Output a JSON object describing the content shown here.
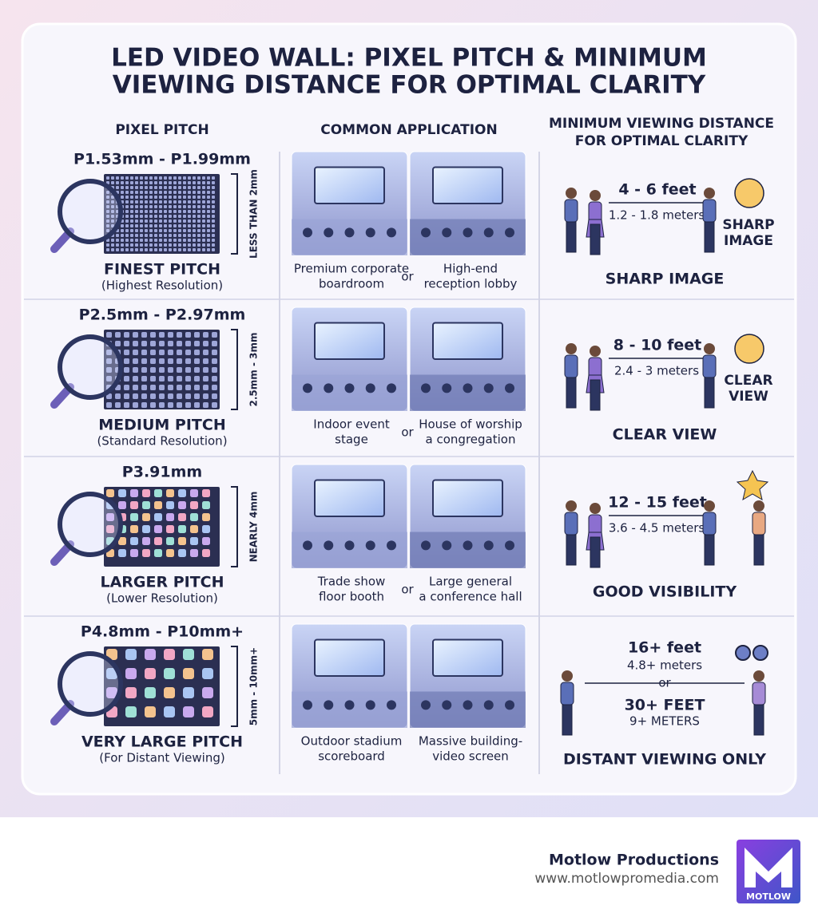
{
  "header": {
    "title_lines": [
      "LED VIDEO WALL: PIXEL PITCH & MINIMUM",
      "VIEWING DISTANCE FOR OPTIMAL CLARITY"
    ]
  },
  "columns": {
    "pixel_pitch": "PIXEL PITCH",
    "application": "COMMON APPLICATION",
    "distance_lines": [
      "MINIMUM VIEWING DISTANCE",
      "FOR OPTIMAL CLARITY"
    ]
  },
  "rows": [
    {
      "pitch_range": "P1.53mm - P1.99mm",
      "size_note": "LESS THAN 2mm",
      "pitch_name": "FINEST PITCH",
      "resolution": "(Highest Resolution)",
      "app_left": [
        "Premium corporate",
        "boardroom"
      ],
      "app_or": "or",
      "app_right": [
        "High-end",
        "reception lobby"
      ],
      "feet": "4 - 6 feet",
      "meters": "1.2 - 1.8 meters",
      "badge": [
        "SHARP",
        "IMAGE"
      ],
      "verdict": "SHARP IMAGE"
    },
    {
      "pitch_range": "P2.5mm - P2.97mm",
      "size_note": "2.5mm - 3mm",
      "pitch_name": "MEDIUM PITCH",
      "resolution": "(Standard Resolution)",
      "app_left": [
        "Indoor event",
        "stage"
      ],
      "app_or": "or",
      "app_right": [
        "House of worship",
        "a congregation"
      ],
      "feet": "8 - 10 feet",
      "meters": "2.4 - 3 meters",
      "badge": [
        "CLEAR",
        "VIEW"
      ],
      "verdict": "CLEAR VIEW"
    },
    {
      "pitch_range": "P3.91mm",
      "size_note": "NEARLY 4mm",
      "pitch_name": "LARGER PITCH",
      "resolution": "(Lower Resolution)",
      "app_left": [
        "Trade show",
        "floor booth"
      ],
      "app_or": "or",
      "app_right": [
        "Large general",
        "a conference hall"
      ],
      "feet": "12 - 15 feet",
      "meters": "3.6 - 4.5 meters",
      "verdict": "GOOD VISIBILITY"
    },
    {
      "pitch_range": "P4.8mm - P10mm+",
      "size_note": "5mm - 10mm+",
      "pitch_name": "VERY LARGE PITCH",
      "resolution": "(For Distant Viewing)",
      "app_left": [
        "Outdoor stadium",
        "scoreboard"
      ],
      "app_right": [
        "Massive building-",
        "video screen"
      ],
      "feet": "16+ feet",
      "meters": "4.8+ meters",
      "alt_or": "or",
      "alt_feet": "30+ FEET",
      "alt_meters": "9+ METERS",
      "verdict": "DISTANT VIEWING ONLY"
    }
  ],
  "footer": {
    "brand": "Motlow Productions",
    "url": "www.motlowpromedia.com",
    "logo": "MOTLOW"
  }
}
